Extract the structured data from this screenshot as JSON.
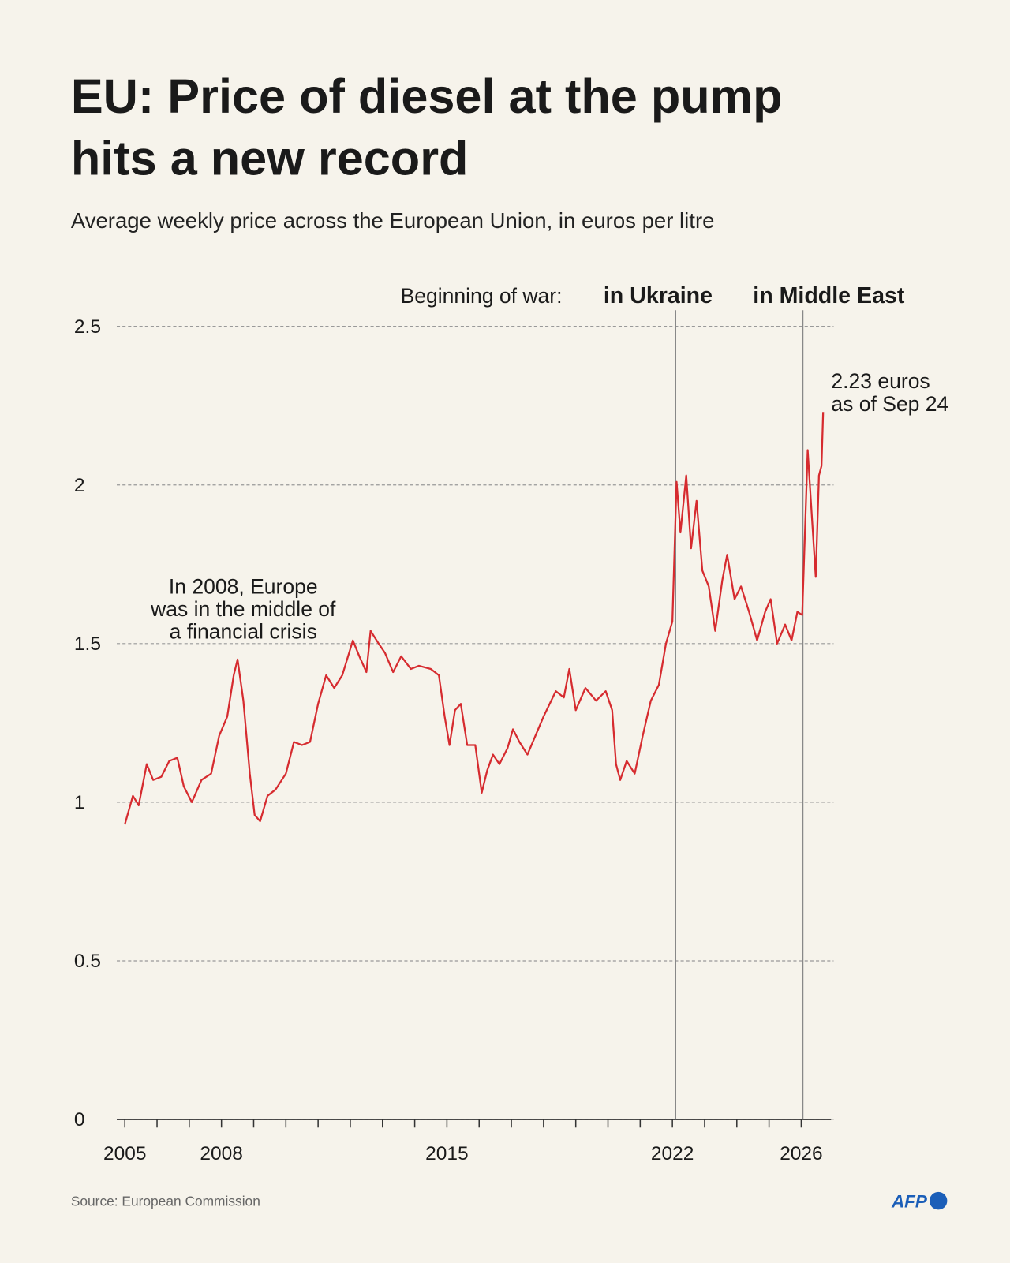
{
  "chart_data": {
    "type": "line",
    "title": [
      "EU: Price of diesel at the pump",
      "hits a new record"
    ],
    "subtitle": "Average weekly price across the European Union, in euros per litre",
    "source": "Source: European Commission",
    "logo": "AFP",
    "event_heading": "Beginning of war:",
    "events": [
      {
        "label": "in Ukraine",
        "x": 2022.1
      },
      {
        "label": "in Middle East",
        "x": 2026.05
      }
    ],
    "annotations": [
      {
        "lines": [
          "2.23 euros",
          "as of Sep 24"
        ]
      },
      {
        "lines": [
          "In 2008, Europe",
          "was in the middle of",
          "a financial crisis"
        ]
      }
    ],
    "color": "#d62b2f",
    "grid": true,
    "xlim": [
      2004.75,
      2026.93
    ],
    "xticks": [
      2005,
      2008,
      2015,
      2022,
      2026
    ],
    "xminor_ticks": [
      2006,
      2007,
      2009,
      2010,
      2011,
      2012,
      2013,
      2014,
      2016,
      2017,
      2018,
      2019,
      2020,
      2021,
      2023,
      2024,
      2025
    ],
    "ylim": [
      0,
      2.5
    ],
    "yticks": [
      0,
      0.5,
      1,
      1.5,
      2,
      2.5
    ],
    "x": [
      2005.0,
      2005.25,
      2005.43,
      2005.68,
      2005.88,
      2006.13,
      2006.38,
      2006.63,
      2006.83,
      2007.08,
      2007.38,
      2007.68,
      2007.93,
      2008.18,
      2008.38,
      2008.5,
      2008.68,
      2008.88,
      2009.03,
      2009.2,
      2009.43,
      2009.68,
      2010.0,
      2010.25,
      2010.5,
      2010.75,
      2011.0,
      2011.25,
      2011.5,
      2011.75,
      2012.08,
      2012.28,
      2012.5,
      2012.63,
      2012.88,
      2013.08,
      2013.33,
      2013.58,
      2013.88,
      2014.13,
      2014.5,
      2014.75,
      2014.93,
      2015.08,
      2015.25,
      2015.43,
      2015.63,
      2015.88,
      2016.08,
      2016.25,
      2016.43,
      2016.63,
      2016.88,
      2017.05,
      2017.25,
      2017.5,
      2017.75,
      2018.0,
      2018.38,
      2018.63,
      2018.8,
      2019.0,
      2019.3,
      2019.63,
      2019.93,
      2020.13,
      2020.25,
      2020.38,
      2020.58,
      2020.83,
      2021.08,
      2021.33,
      2021.58,
      2021.8,
      2022.0,
      2022.13,
      2022.25,
      2022.43,
      2022.58,
      2022.75,
      2022.93,
      2023.13,
      2023.33,
      2023.55,
      2023.7,
      2023.93,
      2024.13,
      2024.38,
      2024.63,
      2024.88,
      2025.05,
      2025.25,
      2025.5,
      2025.7,
      2025.88,
      2026.03,
      2026.2,
      2026.33,
      2026.45,
      2026.55,
      2026.63,
      2026.68
    ],
    "values": [
      0.93,
      1.02,
      0.99,
      1.12,
      1.07,
      1.08,
      1.13,
      1.14,
      1.05,
      1.0,
      1.07,
      1.09,
      1.21,
      1.27,
      1.4,
      1.45,
      1.32,
      1.09,
      0.96,
      0.94,
      1.02,
      1.04,
      1.09,
      1.19,
      1.18,
      1.19,
      1.31,
      1.4,
      1.36,
      1.4,
      1.51,
      1.46,
      1.41,
      1.54,
      1.5,
      1.47,
      1.41,
      1.46,
      1.42,
      1.43,
      1.42,
      1.4,
      1.27,
      1.18,
      1.29,
      1.31,
      1.18,
      1.18,
      1.03,
      1.1,
      1.15,
      1.12,
      1.17,
      1.23,
      1.19,
      1.15,
      1.21,
      1.27,
      1.35,
      1.33,
      1.42,
      1.29,
      1.36,
      1.32,
      1.35,
      1.29,
      1.12,
      1.07,
      1.13,
      1.09,
      1.21,
      1.32,
      1.37,
      1.5,
      1.57,
      2.01,
      1.85,
      2.03,
      1.8,
      1.95,
      1.73,
      1.68,
      1.54,
      1.7,
      1.78,
      1.64,
      1.68,
      1.6,
      1.51,
      1.6,
      1.64,
      1.5,
      1.56,
      1.51,
      1.6,
      1.59,
      2.11,
      1.9,
      1.71,
      2.03,
      2.06,
      2.23
    ]
  }
}
